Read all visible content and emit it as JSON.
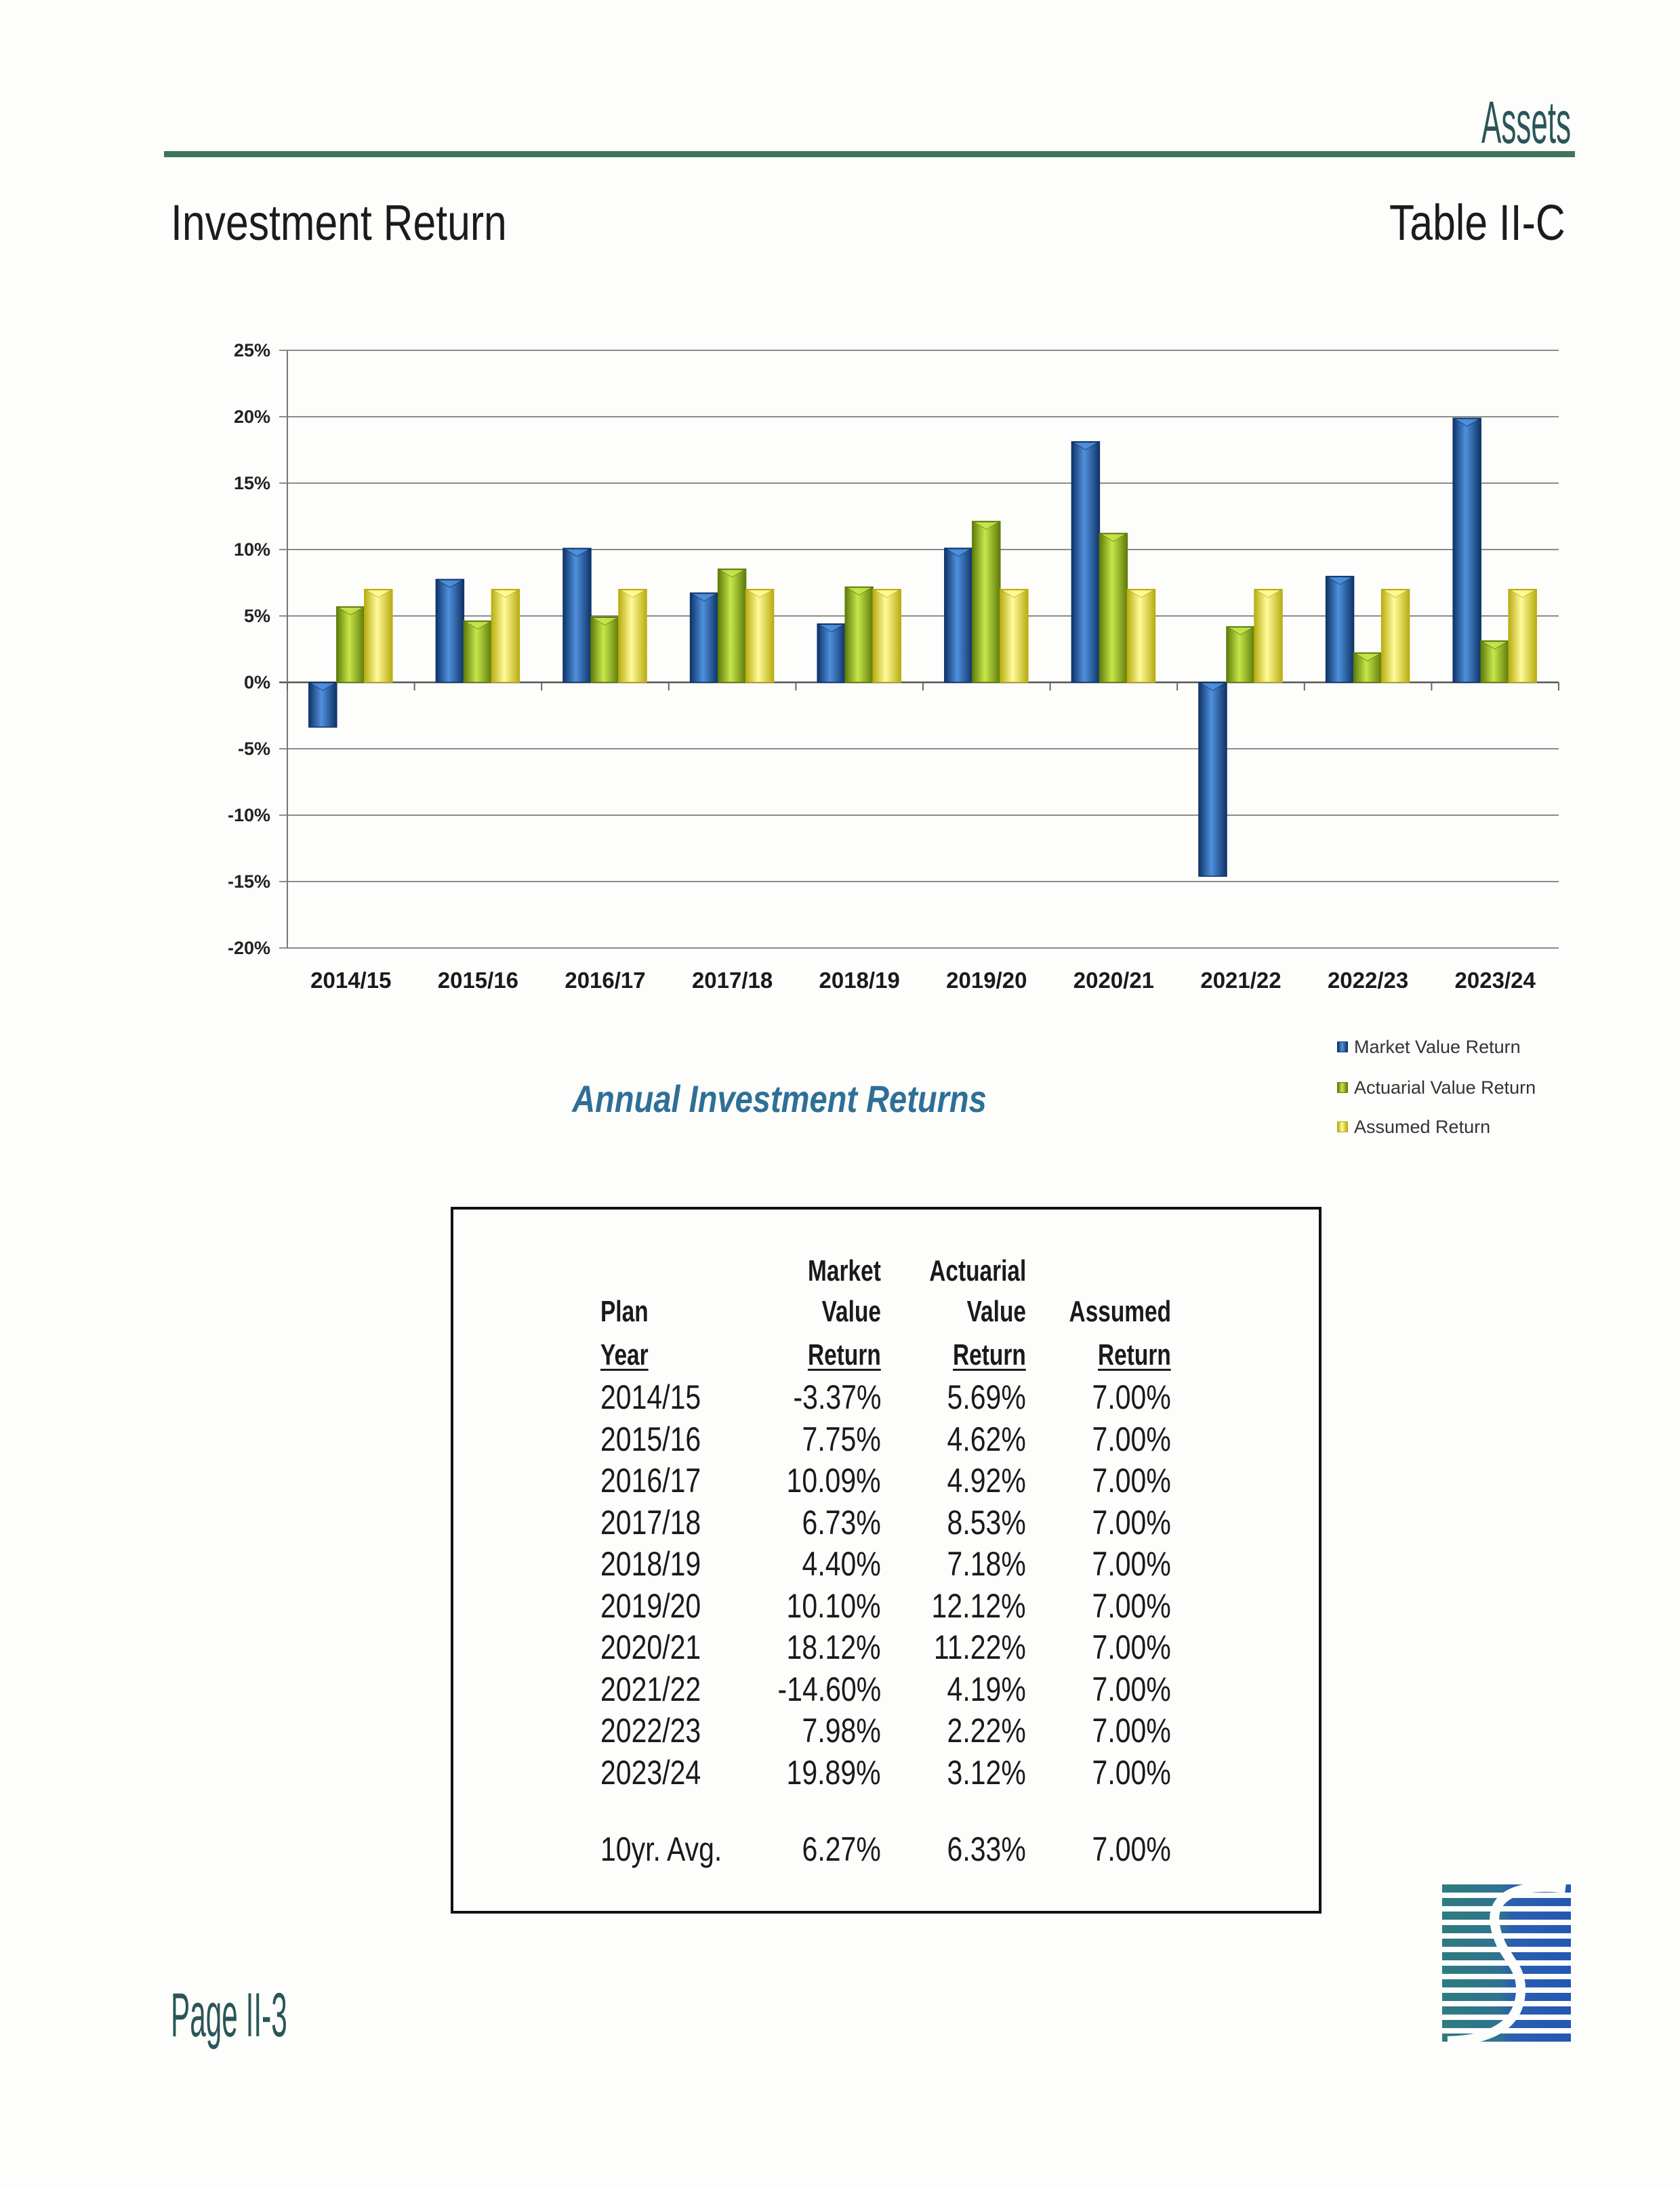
{
  "header": {
    "section_title": "Assets",
    "page_title": "Investment Return",
    "table_label": "Table II-C"
  },
  "chart_data": {
    "type": "bar",
    "title": "Annual Investment Returns",
    "categories": [
      "2014/15",
      "2015/16",
      "2016/17",
      "2017/18",
      "2018/19",
      "2019/20",
      "2020/21",
      "2021/22",
      "2022/23",
      "2023/24"
    ],
    "series": [
      {
        "name": "Market Value Return",
        "values": [
          -3.37,
          7.75,
          10.09,
          6.73,
          4.4,
          10.1,
          18.12,
          -14.6,
          7.98,
          19.89
        ],
        "color": "#1f5ca9",
        "dark": "#0f3468",
        "light": "#4f90dc"
      },
      {
        "name": "Actuarial Value Return",
        "values": [
          5.69,
          4.62,
          4.92,
          8.53,
          7.18,
          12.12,
          11.22,
          4.19,
          2.22,
          3.12
        ],
        "color": "#9bc41e",
        "dark": "#5e7c0a",
        "light": "#c8e64a"
      },
      {
        "name": "Assumed Return",
        "values": [
          7.0,
          7.0,
          7.0,
          7.0,
          7.0,
          7.0,
          7.0,
          7.0,
          7.0,
          7.0
        ],
        "color": "#f2ec3c",
        "dark": "#b9ad12",
        "light": "#fffb9a"
      }
    ],
    "ylim": [
      -20,
      25
    ],
    "yticks": [
      25,
      20,
      15,
      10,
      5,
      0,
      -5,
      -10,
      -15,
      -20
    ],
    "ytick_labels": [
      "25%",
      "20%",
      "15%",
      "10%",
      "5%",
      "0%",
      "-5%",
      "-10%",
      "-15%",
      "-20%"
    ],
    "grid": true,
    "legend_position": "bottom-right"
  },
  "table": {
    "column_headers": [
      [
        "Plan",
        "Year"
      ],
      [
        "Market",
        "Value",
        "Return"
      ],
      [
        "Actuarial",
        "Value",
        "Return"
      ],
      [
        "Assumed",
        "Return"
      ]
    ],
    "rows": [
      [
        "2014/15",
        "-3.37%",
        "5.69%",
        "7.00%"
      ],
      [
        "2015/16",
        "7.75%",
        "4.62%",
        "7.00%"
      ],
      [
        "2016/17",
        "10.09%",
        "4.92%",
        "7.00%"
      ],
      [
        "2017/18",
        "6.73%",
        "8.53%",
        "7.00%"
      ],
      [
        "2018/19",
        "4.40%",
        "7.18%",
        "7.00%"
      ],
      [
        "2019/20",
        "10.10%",
        "12.12%",
        "7.00%"
      ],
      [
        "2020/21",
        "18.12%",
        "11.22%",
        "7.00%"
      ],
      [
        "2021/22",
        "-14.60%",
        "4.19%",
        "7.00%"
      ],
      [
        "2022/23",
        "7.98%",
        "2.22%",
        "7.00%"
      ],
      [
        "2023/24",
        "19.89%",
        "3.12%",
        "7.00%"
      ]
    ],
    "average_row": [
      "10yr. Avg.",
      "6.27%",
      "6.33%",
      "7.00%"
    ]
  },
  "footer": {
    "page_label": "Page II-3"
  }
}
